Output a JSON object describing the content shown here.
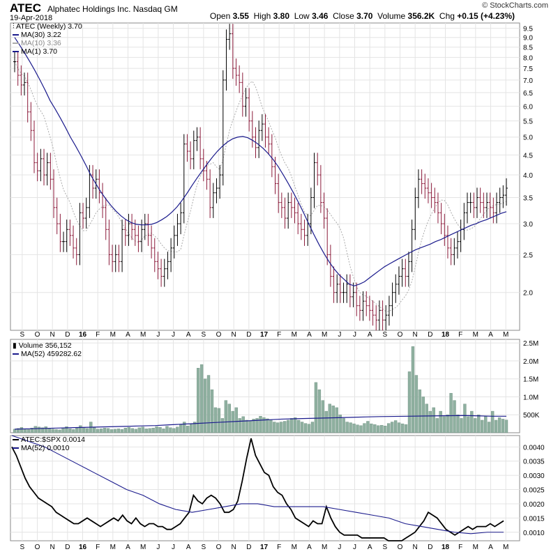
{
  "header": {
    "symbol": "ATEC",
    "name": "Alphatec Holdings Inc.  Nasdaq GM",
    "date": "19-Apr-2018",
    "brand": "© StockCharts.com",
    "open_label": "Open",
    "open": "3.55",
    "high_label": "High",
    "high": "3.80",
    "low_label": "Low",
    "low": "3.46",
    "close_label": "Close",
    "close": "3.70",
    "volume_label": "Volume",
    "volume": "356.2K",
    "chg_label": "Chg",
    "chg": "+0.15 (+4.23%)"
  },
  "legend": {
    "price": "ATEC (Weekly) 3.70",
    "ma30": "MA(30) 3.22",
    "ma10": "MA(10) 3.36",
    "ma1": "MA(1) 3.70",
    "volume": "Volume 356,152",
    "vol_ma": "MA(52) 459282.62",
    "ratio": "ATEC:$SPX 0.0014",
    "ratio_ma": "MA(52) 0.0010"
  },
  "colors": {
    "ma30": "#1a1a8c",
    "ma10": "#aaaaaa",
    "up": "#000000",
    "down": "#8b1a3a",
    "volume": "#8fb0a0",
    "ratio": "#000000"
  },
  "x_axis": {
    "labels": [
      "S",
      "O",
      "N",
      "D",
      "16",
      "F",
      "M",
      "A",
      "M",
      "J",
      "J",
      "A",
      "S",
      "O",
      "N",
      "D",
      "17",
      "F",
      "M",
      "A",
      "M",
      "J",
      "J",
      "A",
      "S",
      "O",
      "N",
      "D",
      "18",
      "F",
      "M",
      "A",
      "M"
    ],
    "bold": [
      "16",
      "17",
      "18"
    ]
  },
  "chart_data": [
    {
      "type": "candlestick",
      "title": "ATEC (Weekly)",
      "y_scale": "log",
      "ylim": [
        1.6,
        9.8
      ],
      "y_ticks": [
        "9.5",
        "9.0",
        "8.5",
        "8.0",
        "7.5",
        "7.0",
        "6.5",
        "6.0",
        "5.5",
        "5.0",
        "4.5",
        "4.0",
        "3.5",
        "3.0",
        "2.5",
        "2.0"
      ],
      "close": [
        7.8,
        7.2,
        6.8,
        6.9,
        5.8,
        5.2,
        4.3,
        4.1,
        4.4,
        4.0,
        4.3,
        3.9,
        3.3,
        3.0,
        2.7,
        2.7,
        2.9,
        2.8,
        2.6,
        2.5,
        3.2,
        3.1,
        3.3,
        4.0,
        3.7,
        3.9,
        3.6,
        3.3,
        2.9,
        2.5,
        2.4,
        2.5,
        2.4,
        2.9,
        2.8,
        3.0,
        2.9,
        2.8,
        2.7,
        2.9,
        3.0,
        2.8,
        2.6,
        2.4,
        2.3,
        2.2,
        2.3,
        2.4,
        2.6,
        2.8,
        3.0,
        3.2,
        4.8,
        4.6,
        4.4,
        4.9,
        5.0,
        4.4,
        4.1,
        3.9,
        3.3,
        3.6,
        3.7,
        4.0,
        7.0,
        8.9,
        9.2,
        7.5,
        7.2,
        6.9,
        6.0,
        6.3,
        5.5,
        5.0,
        4.7,
        5.2,
        5.4,
        5.0,
        4.8,
        4.2,
        3.8,
        3.4,
        3.3,
        3.1,
        3.4,
        3.3,
        3.2,
        3.0,
        2.9,
        2.8,
        3.0,
        3.5,
        4.3,
        4.0,
        3.4,
        3.1,
        2.5,
        2.2,
        2.0,
        2.1,
        2.0,
        2.0,
        2.1,
        1.95,
        2.0,
        1.85,
        1.8,
        1.9,
        1.85,
        1.8,
        1.75,
        1.7,
        1.8,
        1.7,
        1.75,
        1.85,
        2.0,
        2.1,
        2.2,
        2.3,
        2.2,
        2.4,
        2.9,
        3.5,
        3.9,
        3.8,
        3.7,
        3.6,
        3.5,
        3.4,
        3.2,
        3.0,
        2.8,
        2.6,
        2.5,
        2.6,
        2.7,
        2.9,
        3.2,
        3.4,
        3.4,
        3.3,
        3.5,
        3.4,
        3.3,
        3.4,
        3.3,
        3.2,
        3.4,
        3.5,
        3.55,
        3.7
      ],
      "ma30": [
        9.0,
        8.6,
        8.2,
        7.8,
        7.4,
        7.0,
        6.6,
        6.2,
        5.9,
        5.6,
        5.3,
        5.0,
        4.75,
        4.5,
        4.25,
        4.0,
        3.8,
        3.62,
        3.47,
        3.34,
        3.23,
        3.14,
        3.07,
        3.02,
        2.99,
        2.98,
        2.98,
        2.99,
        3.02,
        3.07,
        3.13,
        3.21,
        3.31,
        3.44,
        3.59,
        3.76,
        3.93,
        4.1,
        4.27,
        4.44,
        4.6,
        4.74,
        4.86,
        4.95,
        5.0,
        5.02,
        4.98,
        4.9,
        4.8,
        4.68,
        4.54,
        4.38,
        4.2,
        4.0,
        3.8,
        3.6,
        3.4,
        3.2,
        3.0,
        2.82,
        2.66,
        2.52,
        2.4,
        2.3,
        2.22,
        2.16,
        2.1,
        2.08,
        2.1,
        2.13,
        2.18,
        2.23,
        2.28,
        2.33,
        2.37,
        2.41,
        2.45,
        2.49,
        2.53,
        2.57,
        2.6,
        2.63,
        2.66,
        2.7,
        2.73,
        2.77,
        2.81,
        2.85,
        2.89,
        2.93,
        2.97,
        3.0,
        3.04,
        3.07,
        3.11,
        3.15,
        3.19,
        3.22
      ]
    },
    {
      "type": "bar",
      "title": "Volume",
      "y_ticks": [
        "2.5M",
        "2.0M",
        "1.5M",
        "1.0M",
        "500K"
      ],
      "ylim": [
        0,
        2600000
      ],
      "values": [
        100000,
        120000,
        150000,
        110000,
        90000,
        130000,
        180000,
        160000,
        140000,
        170000,
        120000,
        100000,
        90000,
        80000,
        140000,
        170000,
        110000,
        90000,
        130000,
        200000,
        150000,
        120000,
        300000,
        140000,
        100000,
        110000,
        130000,
        120000,
        90000,
        100000,
        110000,
        95000,
        130000,
        150000,
        120000,
        100000,
        140000,
        160000,
        110000,
        120000,
        130000,
        170000,
        150000,
        110000,
        180000,
        140000,
        120000,
        160000,
        230000,
        300000,
        190000,
        250000,
        300000,
        1800000,
        1900000,
        1500000,
        1600000,
        1200000,
        700000,
        680000,
        400000,
        900000,
        800000,
        600000,
        700000,
        400000,
        450000,
        350000,
        330000,
        380000,
        400000,
        460000,
        420000,
        390000,
        350000,
        300000,
        280000,
        300000,
        320000,
        350000,
        400000,
        420000,
        350000,
        300000,
        260000,
        240000,
        300000,
        1400000,
        1200000,
        900000,
        600000,
        800000,
        750000,
        700000,
        500000,
        400000,
        300000,
        280000,
        250000,
        220000,
        200000,
        260000,
        320000,
        250000,
        230000,
        200000,
        210000,
        190000,
        260000,
        300000,
        340000,
        280000,
        250000,
        230000,
        1700000,
        2400000,
        1600000,
        1200000,
        1000000,
        800000,
        600000,
        700000,
        400000,
        600000,
        450000,
        500000,
        1100000,
        900000,
        500000,
        400000,
        800000,
        450000,
        600000,
        400000,
        500000,
        350000,
        450000,
        300000,
        600000,
        350000,
        420000,
        380000,
        356152
      ],
      "ma52": [
        100000,
        110000,
        120000,
        130000,
        140000,
        150000,
        160000,
        170000,
        180000,
        190000,
        200000,
        220000,
        240000,
        260000,
        280000,
        300000,
        320000,
        340000,
        360000,
        380000,
        390000,
        400000,
        410000,
        420000,
        430000,
        440000,
        450000,
        455000,
        460000,
        465000,
        470000,
        475000,
        480000,
        470000,
        460000,
        459282
      ]
    },
    {
      "type": "line",
      "title": "ATEC:$SPX",
      "y_ticks": [
        "0.0040",
        "0.0035",
        "0.0030",
        "0.0025",
        "0.0020",
        "0.0015",
        "0.0010"
      ],
      "ylim": [
        0.0007,
        0.0044
      ],
      "values": [
        0.004,
        0.0037,
        0.0033,
        0.0029,
        0.0026,
        0.0024,
        0.0022,
        0.0021,
        0.002,
        0.0019,
        0.0017,
        0.0016,
        0.0015,
        0.0014,
        0.0013,
        0.0013,
        0.0014,
        0.0015,
        0.0014,
        0.0013,
        0.0012,
        0.0013,
        0.0014,
        0.0015,
        0.0014,
        0.0016,
        0.0014,
        0.0013,
        0.0015,
        0.0013,
        0.0012,
        0.0013,
        0.0013,
        0.0012,
        0.0012,
        0.0011,
        0.0011,
        0.0012,
        0.0013,
        0.0015,
        0.0017,
        0.0023,
        0.0021,
        0.002,
        0.0022,
        0.0023,
        0.0022,
        0.002,
        0.0017,
        0.0017,
        0.0018,
        0.0021,
        0.0028,
        0.0036,
        0.0043,
        0.0037,
        0.0034,
        0.0031,
        0.003,
        0.0026,
        0.0024,
        0.0023,
        0.002,
        0.0018,
        0.0015,
        0.0014,
        0.0013,
        0.0012,
        0.0014,
        0.0013,
        0.0013,
        0.0019,
        0.0015,
        0.0012,
        0.001,
        0.0009,
        0.0009,
        0.0009,
        0.0009,
        0.0008,
        0.0008,
        0.0008,
        0.0008,
        0.0008,
        0.0008,
        0.0007,
        0.0007,
        0.0007,
        0.0007,
        0.0008,
        0.0009,
        0.001,
        0.0012,
        0.0014,
        0.0017,
        0.0016,
        0.0015,
        0.0013,
        0.0011,
        0.001,
        0.0009,
        0.001,
        0.0011,
        0.0012,
        0.0011,
        0.0012,
        0.0012,
        0.0012,
        0.0013,
        0.0012,
        0.0013,
        0.0014
      ],
      "ma52": [
        0.0044,
        0.0042,
        0.004,
        0.0037,
        0.0034,
        0.0031,
        0.0028,
        0.0025,
        0.0023,
        0.002,
        0.0018,
        0.0017,
        0.0018,
        0.0019,
        0.002,
        0.002,
        0.0019,
        0.0019,
        0.0019,
        0.0019,
        0.0018,
        0.0017,
        0.0016,
        0.0015,
        0.0013,
        0.0012,
        0.0011,
        0.001,
        0.00095,
        0.001,
        0.001
      ]
    }
  ]
}
